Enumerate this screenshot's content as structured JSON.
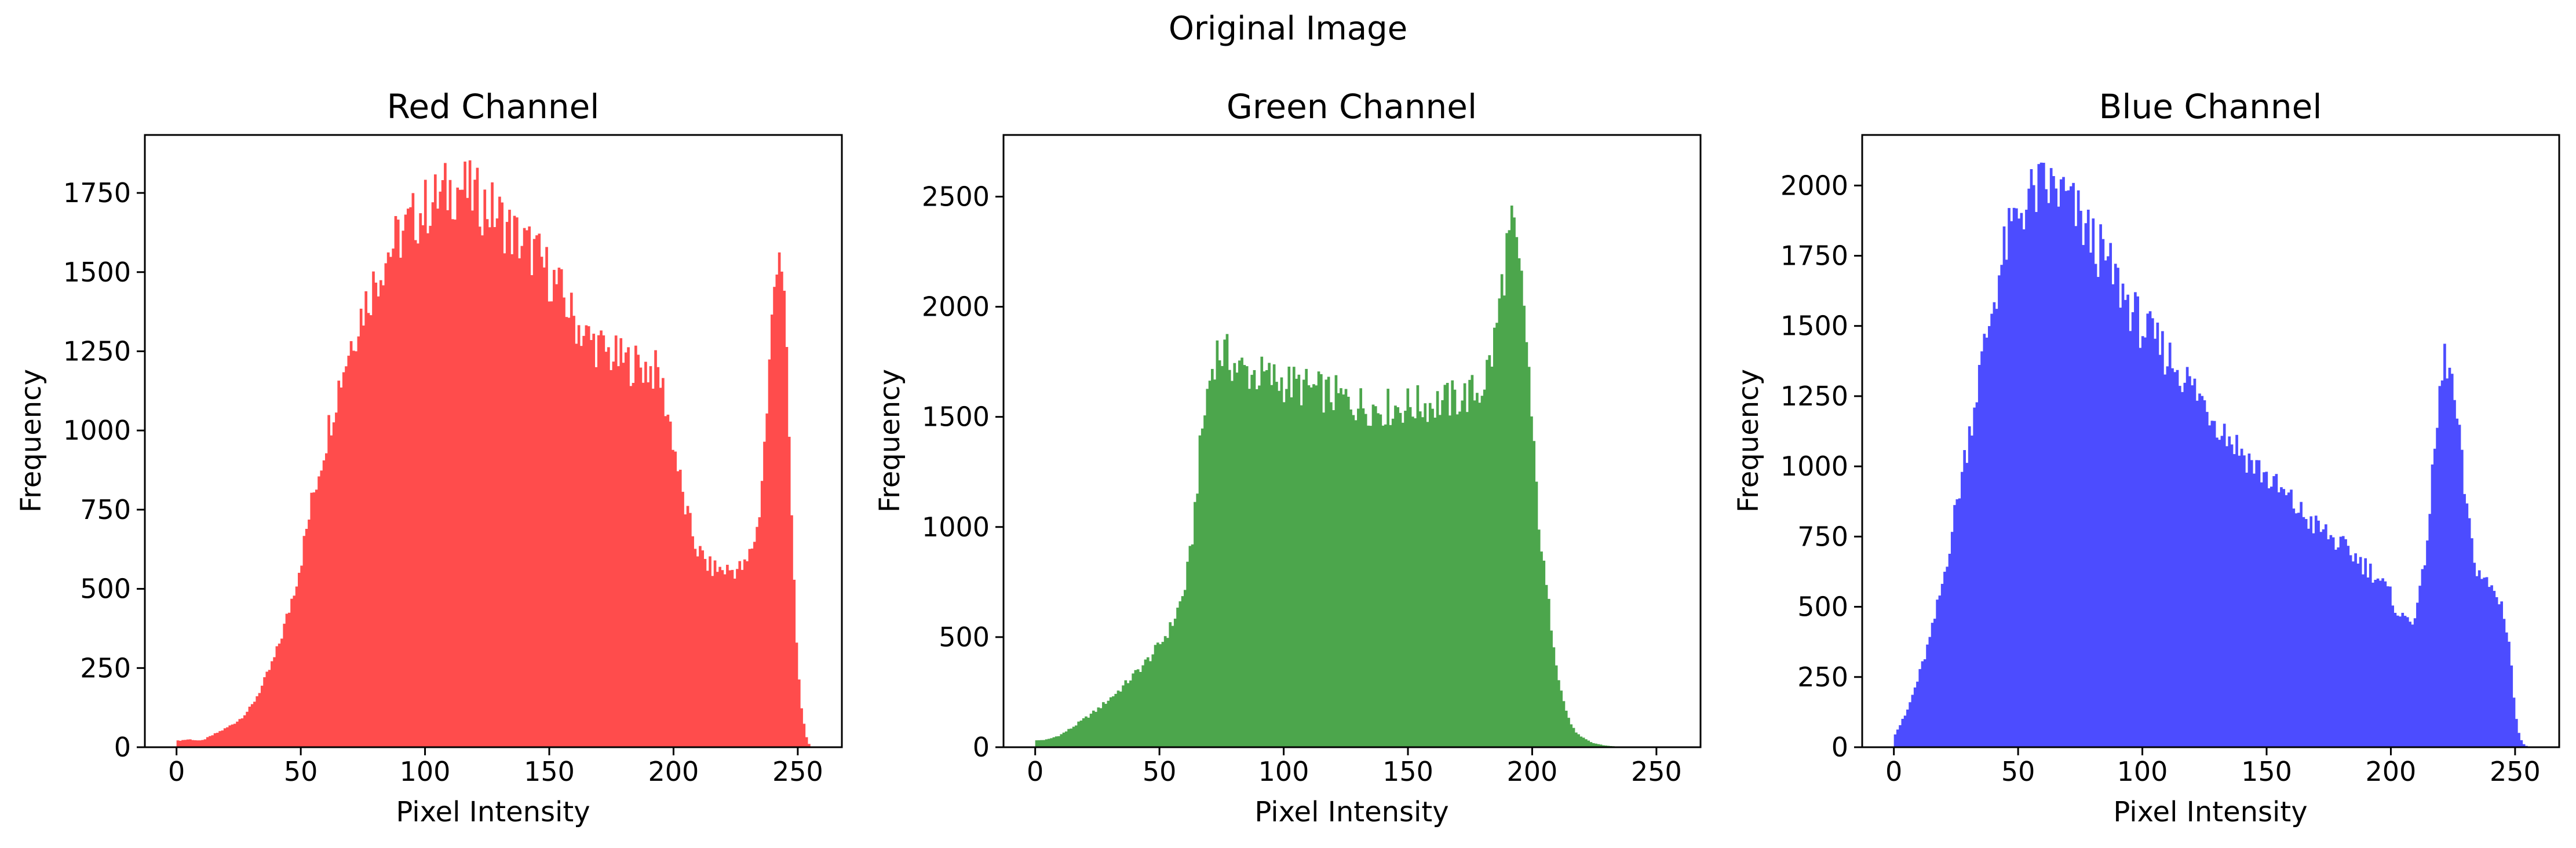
{
  "figure": {
    "suptitle": "Original Image"
  },
  "chart_data": [
    {
      "type": "histogram",
      "title": "Red Channel",
      "xlabel": "Pixel Intensity",
      "ylabel": "Frequency",
      "color": "#ff4c4c",
      "xlim": [
        -12.75,
        267.75
      ],
      "ylim": [
        0,
        1933
      ],
      "xticks": [
        0,
        50,
        100,
        150,
        200,
        250
      ],
      "yticks": [
        0,
        250,
        500,
        750,
        1000,
        1250,
        1500,
        1750
      ],
      "bins": 256,
      "keypoints": [
        [
          0,
          20
        ],
        [
          5,
          25
        ],
        [
          10,
          20
        ],
        [
          15,
          40
        ],
        [
          20,
          60
        ],
        [
          25,
          85
        ],
        [
          30,
          125
        ],
        [
          35,
          200
        ],
        [
          40,
          290
        ],
        [
          45,
          420
        ],
        [
          50,
          580
        ],
        [
          55,
          790
        ],
        [
          60,
          960
        ],
        [
          65,
          1130
        ],
        [
          70,
          1270
        ],
        [
          75,
          1380
        ],
        [
          80,
          1470
        ],
        [
          85,
          1560
        ],
        [
          90,
          1610
        ],
        [
          95,
          1660
        ],
        [
          100,
          1700
        ],
        [
          105,
          1730
        ],
        [
          110,
          1760
        ],
        [
          115,
          1770
        ],
        [
          120,
          1740
        ],
        [
          125,
          1710
        ],
        [
          130,
          1680
        ],
        [
          135,
          1630
        ],
        [
          140,
          1590
        ],
        [
          145,
          1560
        ],
        [
          150,
          1500
        ],
        [
          155,
          1440
        ],
        [
          160,
          1360
        ],
        [
          165,
          1300
        ],
        [
          170,
          1270
        ],
        [
          175,
          1240
        ],
        [
          180,
          1220
        ],
        [
          185,
          1210
        ],
        [
          190,
          1200
        ],
        [
          195,
          1180
        ],
        [
          200,
          1000
        ],
        [
          205,
          770
        ],
        [
          210,
          630
        ],
        [
          215,
          570
        ],
        [
          220,
          560
        ],
        [
          225,
          560
        ],
        [
          230,
          570
        ],
        [
          235,
          700
        ],
        [
          238,
          1000
        ],
        [
          241,
          1400
        ],
        [
          243,
          1620
        ],
        [
          245,
          1500
        ],
        [
          247,
          1100
        ],
        [
          249,
          600
        ],
        [
          251,
          250
        ],
        [
          253,
          90
        ],
        [
          255,
          10
        ]
      ]
    },
    {
      "type": "histogram",
      "title": "Green Channel",
      "xlabel": "Pixel Intensity",
      "ylabel": "Frequency",
      "color": "#4ca64c",
      "xlim": [
        -12.75,
        267.75
      ],
      "ylim": [
        0,
        2780
      ],
      "xticks": [
        0,
        50,
        100,
        150,
        200,
        250
      ],
      "yticks": [
        0,
        500,
        1000,
        1500,
        2000,
        2500
      ],
      "bins": 256,
      "keypoints": [
        [
          0,
          30
        ],
        [
          5,
          35
        ],
        [
          10,
          55
        ],
        [
          15,
          90
        ],
        [
          20,
          130
        ],
        [
          25,
          170
        ],
        [
          30,
          220
        ],
        [
          35,
          270
        ],
        [
          40,
          330
        ],
        [
          45,
          390
        ],
        [
          50,
          460
        ],
        [
          55,
          550
        ],
        [
          60,
          700
        ],
        [
          63,
          900
        ],
        [
          65,
          1150
        ],
        [
          67,
          1400
        ],
        [
          70,
          1650
        ],
        [
          73,
          1800
        ],
        [
          77,
          1780
        ],
        [
          82,
          1720
        ],
        [
          90,
          1690
        ],
        [
          100,
          1660
        ],
        [
          110,
          1630
        ],
        [
          120,
          1600
        ],
        [
          130,
          1560
        ],
        [
          140,
          1540
        ],
        [
          150,
          1550
        ],
        [
          160,
          1560
        ],
        [
          170,
          1580
        ],
        [
          180,
          1620
        ],
        [
          185,
          1800
        ],
        [
          188,
          2050
        ],
        [
          191,
          2300
        ],
        [
          193,
          2350
        ],
        [
          195,
          2200
        ],
        [
          197,
          2050
        ],
        [
          199,
          1800
        ],
        [
          201,
          1400
        ],
        [
          203,
          1100
        ],
        [
          205,
          850
        ],
        [
          208,
          600
        ],
        [
          211,
          350
        ],
        [
          214,
          180
        ],
        [
          217,
          90
        ],
        [
          220,
          50
        ],
        [
          225,
          20
        ],
        [
          230,
          8
        ],
        [
          235,
          3
        ],
        [
          245,
          0
        ],
        [
          255,
          0
        ]
      ]
    },
    {
      "type": "histogram",
      "title": "Blue Channel",
      "xlabel": "Pixel Intensity",
      "ylabel": "Frequency",
      "color": "#4c4cff",
      "xlim": [
        -12.75,
        267.75
      ],
      "ylim": [
        0,
        2180
      ],
      "xticks": [
        0,
        50,
        100,
        150,
        200,
        250
      ],
      "yticks": [
        0,
        250,
        500,
        750,
        1000,
        1250,
        1500,
        1750,
        2000
      ],
      "bins": 256,
      "keypoints": [
        [
          0,
          40
        ],
        [
          5,
          120
        ],
        [
          10,
          250
        ],
        [
          15,
          400
        ],
        [
          20,
          600
        ],
        [
          25,
          850
        ],
        [
          30,
          1100
        ],
        [
          35,
          1350
        ],
        [
          40,
          1580
        ],
        [
          45,
          1780
        ],
        [
          50,
          1900
        ],
        [
          55,
          1960
        ],
        [
          60,
          1990
        ],
        [
          65,
          1990
        ],
        [
          70,
          1950
        ],
        [
          75,
          1880
        ],
        [
          80,
          1810
        ],
        [
          85,
          1740
        ],
        [
          90,
          1660
        ],
        [
          95,
          1580
        ],
        [
          100,
          1500
        ],
        [
          105,
          1450
        ],
        [
          110,
          1400
        ],
        [
          115,
          1350
        ],
        [
          120,
          1290
        ],
        [
          125,
          1230
        ],
        [
          130,
          1170
        ],
        [
          135,
          1110
        ],
        [
          140,
          1060
        ],
        [
          145,
          1010
        ],
        [
          150,
          970
        ],
        [
          155,
          920
        ],
        [
          160,
          880
        ],
        [
          165,
          830
        ],
        [
          170,
          790
        ],
        [
          175,
          760
        ],
        [
          180,
          720
        ],
        [
          185,
          690
        ],
        [
          190,
          650
        ],
        [
          195,
          610
        ],
        [
          200,
          550
        ],
        [
          205,
          460
        ],
        [
          210,
          460
        ],
        [
          213,
          560
        ],
        [
          216,
          800
        ],
        [
          219,
          1100
        ],
        [
          221,
          1300
        ],
        [
          223,
          1400
        ],
        [
          225,
          1320
        ],
        [
          227,
          1200
        ],
        [
          229,
          1050
        ],
        [
          232,
          800
        ],
        [
          235,
          650
        ],
        [
          238,
          600
        ],
        [
          242,
          560
        ],
        [
          246,
          500
        ],
        [
          249,
          350
        ],
        [
          251,
          120
        ],
        [
          253,
          30
        ],
        [
          255,
          5
        ]
      ]
    }
  ]
}
